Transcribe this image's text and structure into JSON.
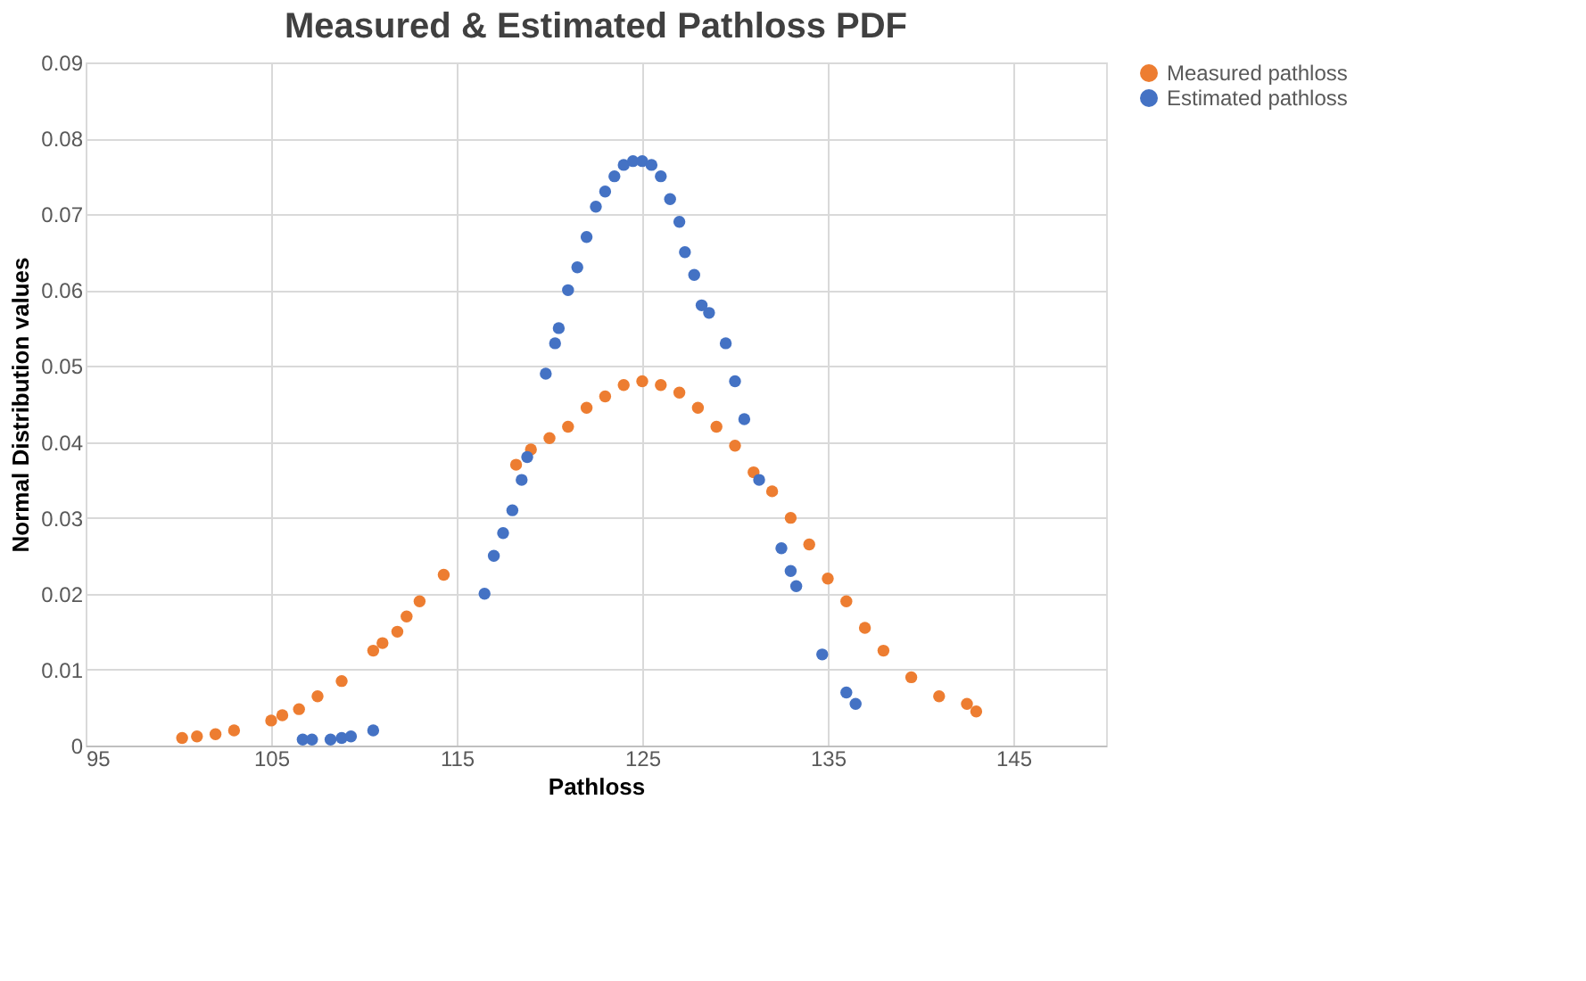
{
  "chart_data": {
    "type": "scatter",
    "title": "Measured & Estimated Pathloss PDF",
    "xlabel": "Pathloss",
    "ylabel": "Normal Distribution values",
    "xlim": [
      95,
      150
    ],
    "xticks": [
      95,
      105,
      115,
      125,
      135,
      145
    ],
    "ylim": [
      0,
      0.09
    ],
    "yticks": [
      0,
      0.01,
      0.02,
      0.03,
      0.04,
      0.05,
      0.06,
      0.07,
      0.08,
      0.09
    ],
    "grid": true,
    "legend": "right",
    "marker": "circle",
    "series": [
      {
        "name": "Measured pathloss",
        "color": "#ed7d31",
        "x": [
          100.2,
          101,
          102,
          103,
          105,
          105.6,
          106.5,
          107.5,
          108.8,
          110.5,
          111,
          111.8,
          112.3,
          113,
          114.3,
          118.2,
          119,
          120,
          121,
          122,
          123,
          124,
          125,
          126,
          127,
          128,
          129,
          130,
          131,
          132,
          133,
          134,
          135,
          136,
          137,
          138,
          139.5,
          141,
          142.5,
          143
        ],
        "values": [
          0.001,
          0.0012,
          0.0015,
          0.002,
          0.0033,
          0.004,
          0.0048,
          0.0065,
          0.0085,
          0.0125,
          0.0135,
          0.015,
          0.017,
          0.019,
          0.0225,
          0.037,
          0.039,
          0.0405,
          0.042,
          0.0445,
          0.046,
          0.0475,
          0.048,
          0.0475,
          0.0465,
          0.0445,
          0.042,
          0.0395,
          0.036,
          0.0335,
          0.03,
          0.0265,
          0.022,
          0.019,
          0.0155,
          0.0125,
          0.009,
          0.0065,
          0.0055,
          0.0045
        ]
      },
      {
        "name": "Estimated pathloss",
        "color": "#4472c4",
        "x": [
          106.7,
          107.2,
          108.2,
          108.8,
          109.3,
          110.5,
          116.5,
          117,
          117.5,
          118,
          118.5,
          118.8,
          119.8,
          120.3,
          120.5,
          121,
          121.5,
          122,
          122.5,
          123,
          123.5,
          124,
          124.5,
          125,
          125.5,
          126,
          126.5,
          127,
          127.3,
          127.8,
          128.2,
          128.6,
          129.5,
          130,
          130.5,
          131.3,
          132.5,
          133,
          133.3,
          134.7,
          136,
          136.5
        ],
        "values": [
          0.0008,
          0.0008,
          0.0008,
          0.001,
          0.0012,
          0.002,
          0.02,
          0.025,
          0.028,
          0.031,
          0.035,
          0.038,
          0.049,
          0.053,
          0.055,
          0.06,
          0.063,
          0.067,
          0.071,
          0.073,
          0.075,
          0.0765,
          0.077,
          0.077,
          0.0765,
          0.075,
          0.072,
          0.069,
          0.065,
          0.062,
          0.058,
          0.057,
          0.053,
          0.048,
          0.043,
          0.035,
          0.026,
          0.023,
          0.021,
          0.012,
          0.007,
          0.0055
        ]
      }
    ]
  }
}
